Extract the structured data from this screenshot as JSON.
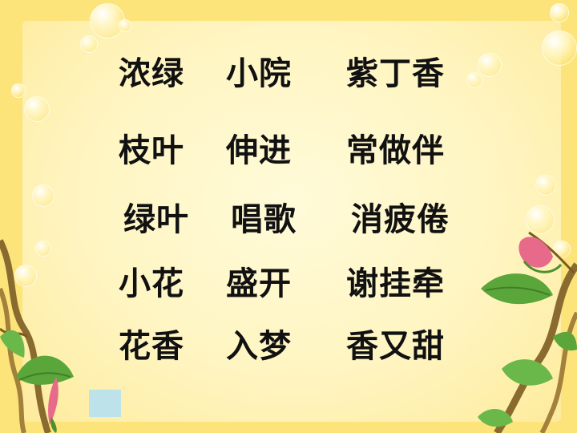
{
  "rows": [
    [
      "浓绿",
      "小院",
      "紫丁香"
    ],
    [
      "枝叶",
      "伸进",
      "常做伴"
    ],
    [
      "绿叶",
      "唱歌",
      "消疲倦"
    ],
    [
      "小花",
      "盛开",
      "谢挂牵"
    ],
    [
      "花香",
      "入梦",
      "香又甜"
    ]
  ],
  "colors": {
    "background": "#fde47a",
    "panel": "#fff6c8",
    "text": "#111111",
    "leaf": "#5aa63a",
    "vine": "#8a6b2f",
    "bud": "#e86a8a",
    "square": "#bde2ea"
  }
}
